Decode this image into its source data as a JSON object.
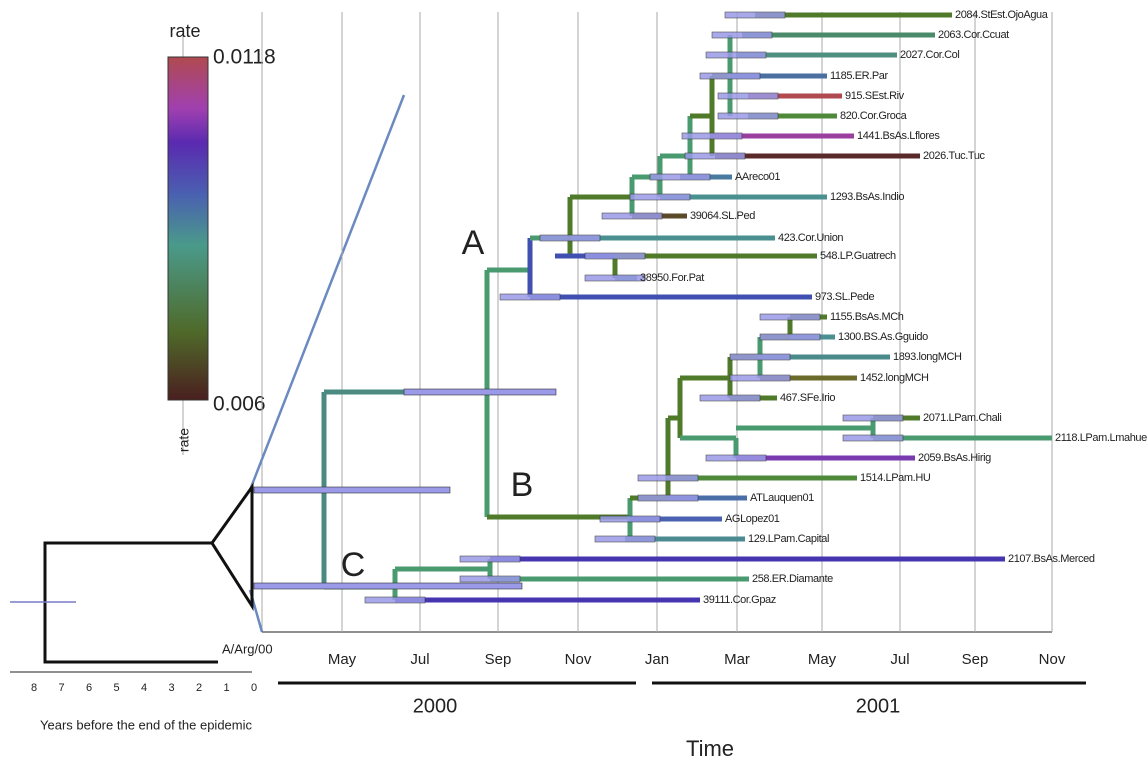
{
  "legend": {
    "title": "rate",
    "max": "0.0118",
    "min": "0.006"
  },
  "time_axis": {
    "months": [
      "May",
      "Jul",
      "Sep",
      "Nov",
      "Jan",
      "Mar",
      "May",
      "Jul",
      "Sep",
      "Nov"
    ],
    "years": [
      "2000",
      "2001"
    ],
    "title": "Time"
  },
  "inset": {
    "ticks": [
      "8",
      "7",
      "6",
      "5",
      "4",
      "3",
      "2",
      "1",
      "0"
    ],
    "title": "Years before the end of the epidemic",
    "tip": "A/Arg/00"
  },
  "clades": [
    "A",
    "B",
    "C"
  ],
  "tips": [
    "2084.StEst.OjoAgua",
    "2063.Cor.Ccuat",
    "2027.Cor.Col",
    "1185.ER.Par",
    "915.SEst.Riv",
    "820.Cor.Groca",
    "1441.BsAs.Lflores",
    "2026.Tuc.Tuc",
    "AAreco01",
    "1293.BsAs.Indio",
    "39064.SL.Ped",
    "423.Cor.Union",
    "548.LP.Guatrech",
    "38950.For.Pat",
    "973.SL.Pede",
    "1155.BsAs.MCh",
    "1300.BS.As.Gguido",
    "1893.longMCH",
    "1452.longMCH",
    "467.SFe.Irio",
    "2071.LPam.Chali",
    "2118.LPam.Lmahue",
    "2059.BsAs.Hirig",
    "1514.LPam.HU",
    "ATLauquen01",
    "AGLopez01",
    "129.LPam.Capital",
    "2107.BsAs.Merced",
    "258.ER.Diamante",
    "39111.Cor.Gpaz"
  ]
}
